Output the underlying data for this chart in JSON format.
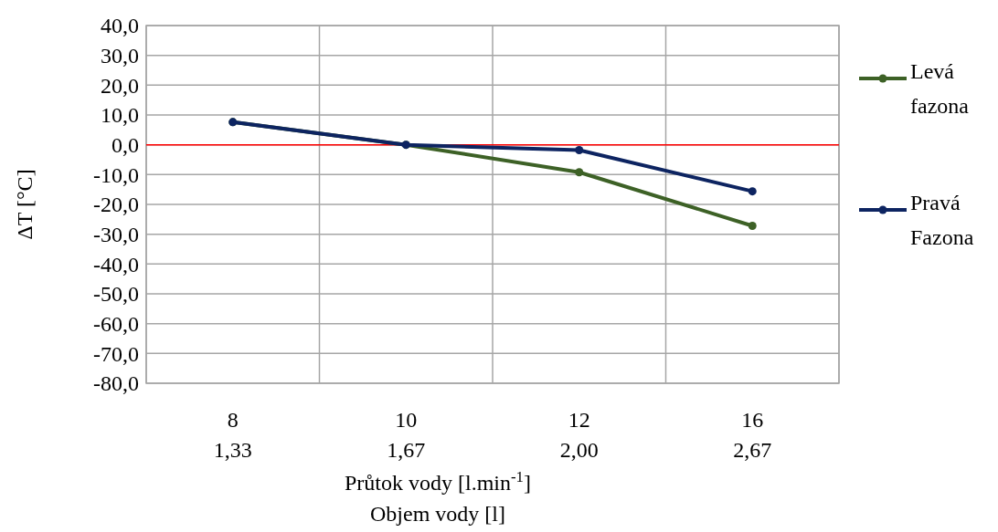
{
  "chart_data": {
    "type": "line",
    "ylabel": "ΔT [°C]",
    "xlabel": "Průtok vody [l.min$^{-1}$]\nObjem vody [l]",
    "categories": [
      "8\n1,33",
      "10\n1,67",
      "12\n2,00",
      "16\n2,67"
    ],
    "series": [
      {
        "name": "Levá fazona",
        "color": "#3d6126",
        "values": [
          7.6,
          0,
          -9.2,
          -27.2
        ]
      },
      {
        "name": "Pravá Fazona",
        "color": "#0d2461",
        "values": [
          7.6,
          0,
          -1.8,
          -15.6
        ]
      }
    ],
    "ylim": [
      -80,
      40
    ],
    "yticks": [
      {
        "value": -80,
        "label": "-80,0"
      },
      {
        "value": -70,
        "label": "-70,0"
      },
      {
        "value": -60,
        "label": "-60,0"
      },
      {
        "value": -50,
        "label": "-50,0"
      },
      {
        "value": -40,
        "label": "-40,0"
      },
      {
        "value": -30,
        "label": "-30,0"
      },
      {
        "value": -20,
        "label": "-20,0"
      },
      {
        "value": -10,
        "label": "-10,0"
      },
      {
        "value": 0,
        "label": "0,0"
      },
      {
        "value": 10,
        "label": "10,0"
      },
      {
        "value": 20,
        "label": "20,0"
      },
      {
        "value": 30,
        "label": "30,0"
      },
      {
        "value": 40,
        "label": "40,0"
      }
    ],
    "ref_lines": [
      {
        "axis": "y",
        "value": 0,
        "color": "#ff0000"
      }
    ],
    "grid": true,
    "legend": "right",
    "marker": "circle"
  }
}
